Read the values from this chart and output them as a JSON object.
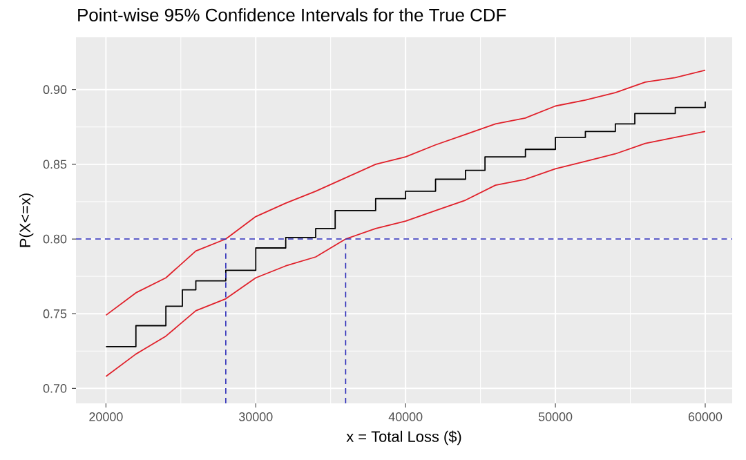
{
  "chart_data": {
    "type": "line",
    "title": "Point-wise 95% Confidence Intervals for the True CDF",
    "xlabel": "x = Total Loss ($)",
    "ylabel": "P(X<=x)",
    "xlim": [
      18000,
      61800
    ],
    "ylim": [
      0.69,
      0.935
    ],
    "xticks": [
      20000,
      30000,
      40000,
      50000,
      60000
    ],
    "yticks": [
      {
        "value": 0.7,
        "label": "0.70"
      },
      {
        "value": 0.75,
        "label": "0.75"
      },
      {
        "value": 0.8,
        "label": "0.80"
      },
      {
        "value": 0.85,
        "label": "0.85"
      },
      {
        "value": 0.9,
        "label": "0.90"
      }
    ],
    "grid": true,
    "series": [
      {
        "color": "#e0202a",
        "x": [
          20000,
          22000,
          24000,
          26000,
          28000,
          30000,
          32000,
          34000,
          36000,
          38000,
          40000,
          42000,
          44000,
          46000,
          48000,
          50000,
          52000,
          54000,
          56000,
          58000,
          60000
        ],
        "values": [
          0.749,
          0.764,
          0.774,
          0.792,
          0.8,
          0.815,
          0.824,
          0.832,
          0.841,
          0.85,
          0.855,
          0.863,
          0.87,
          0.877,
          0.881,
          0.889,
          0.893,
          0.898,
          0.905,
          0.908,
          0.913
        ]
      },
      {
        "type": "step",
        "color": "#000000",
        "x": [
          20000,
          22000,
          24000,
          25100,
          26000,
          28000,
          30000,
          32000,
          34000,
          35300,
          38000,
          40000,
          42000,
          44000,
          45300,
          46000,
          48000,
          50000,
          52000,
          54000,
          55300,
          56000,
          58000,
          60000
        ],
        "values": [
          0.728,
          0.742,
          0.755,
          0.766,
          0.772,
          0.779,
          0.794,
          0.801,
          0.807,
          0.819,
          0.827,
          0.832,
          0.84,
          0.846,
          0.855,
          0.855,
          0.86,
          0.868,
          0.872,
          0.877,
          0.884,
          0.884,
          0.888,
          0.892
        ]
      },
      {
        "color": "#e0202a",
        "x": [
          20000,
          22000,
          24000,
          26000,
          28000,
          30000,
          32000,
          34000,
          36000,
          38000,
          40000,
          42000,
          44000,
          46000,
          48000,
          50000,
          52000,
          54000,
          56000,
          58000,
          60000
        ],
        "values": [
          0.708,
          0.723,
          0.735,
          0.752,
          0.76,
          0.774,
          0.782,
          0.788,
          0.8,
          0.807,
          0.812,
          0.819,
          0.826,
          0.836,
          0.84,
          0.847,
          0.852,
          0.857,
          0.864,
          0.868,
          0.872
        ]
      }
    ],
    "ref_lines": [
      {
        "axis": "y",
        "value": 0.8,
        "color": "#2a2ab8",
        "line_style": "dashed"
      },
      {
        "axis": "x",
        "value": 28000,
        "color": "#2a2ab8",
        "line_style": "dashed"
      },
      {
        "axis": "x",
        "value": 36000,
        "color": "#2a2ab8",
        "line_style": "dashed"
      }
    ]
  }
}
